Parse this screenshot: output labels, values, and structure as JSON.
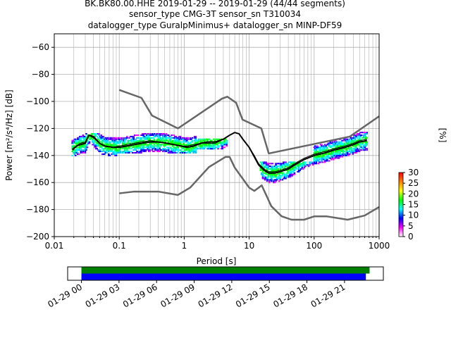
{
  "chart_data": [
    {
      "type": "heatmap",
      "title_lines": [
        "BK.BK80.00.HHE   2019-01-29 -- 2019-01-29  (44/44 segments)",
        "sensor_type CMG-3T sensor_sn T310034",
        "datalogger_type GuralpMinimus+ datalogger_sn MINP-DF59"
      ],
      "xlabel": "Period [s]",
      "ylabel": "Power [m²/s⁴/Hz] [dB]",
      "x_scale": "log",
      "xlim": [
        0.01,
        1000
      ],
      "ylim": [
        -200,
        -50
      ],
      "x_tick_labels": [
        "0.01",
        "0.1",
        "1",
        "10",
        "100",
        "1000"
      ],
      "x_ticks": [
        0.01,
        0.1,
        1,
        10,
        100,
        1000
      ],
      "y_ticks": [
        -200,
        -180,
        -160,
        -140,
        -120,
        -100,
        -80,
        -60
      ],
      "grid": true,
      "colorbar": {
        "label": "[%]",
        "min": 0,
        "max": 30,
        "ticks": [
          0,
          5,
          10,
          15,
          20,
          25,
          30
        ],
        "colors": [
          "#ffffff",
          "#ff00ff",
          "#0000ff",
          "#00ffff",
          "#00ff00",
          "#ffff00",
          "#ff8000",
          "#ff0000"
        ]
      },
      "mode_curve": {
        "period": [
          0.019,
          0.022,
          0.025,
          0.03,
          0.034,
          0.04,
          0.05,
          0.06,
          0.08,
          0.1,
          0.13,
          0.17,
          0.22,
          0.3,
          0.4,
          0.55,
          0.7,
          0.9,
          1.1,
          1.4,
          1.8,
          2.3,
          3,
          4,
          5,
          6,
          7,
          8,
          10,
          12,
          14,
          17,
          20,
          25,
          30,
          40,
          50,
          70,
          100,
          150,
          200,
          300,
          400,
          500,
          650
        ],
        "power": [
          -136,
          -133,
          -132,
          -131,
          -125,
          -126,
          -131,
          -133,
          -134,
          -134,
          -133,
          -132,
          -131,
          -130,
          -130,
          -131,
          -132,
          -133,
          -134,
          -133,
          -131,
          -130,
          -130,
          -128,
          -125,
          -123,
          -124,
          -128,
          -134,
          -141,
          -147,
          -151,
          -153,
          -153,
          -152,
          -150,
          -147,
          -143,
          -140,
          -138,
          -136,
          -134,
          -132,
          -130,
          -129
        ]
      },
      "mean_curve": {
        "period": [
          0.019,
          0.022,
          0.025,
          0.03,
          0.034,
          0.04,
          0.05,
          0.06,
          0.08,
          0.1,
          0.13,
          0.17,
          0.22,
          0.3,
          0.4,
          0.55,
          0.7,
          0.9,
          1.1,
          1.4,
          1.8,
          2.3,
          3,
          4,
          5,
          6,
          7,
          8,
          10,
          12,
          14,
          17,
          20,
          25,
          30,
          40,
          50,
          70,
          100,
          150,
          200,
          300,
          400,
          500,
          650
        ],
        "power": [
          -135,
          -133,
          -131,
          -130,
          -125,
          -127,
          -131,
          -133,
          -134,
          -133,
          -132,
          -131,
          -130,
          -129,
          -130,
          -131,
          -132,
          -133,
          -133,
          -132,
          -131,
          -131,
          -131,
          -128,
          -125,
          -123,
          -124,
          -128,
          -134,
          -140,
          -146,
          -150,
          -152,
          -152,
          -151,
          -149,
          -146,
          -142,
          -139,
          -137,
          -135,
          -133,
          -131,
          -129,
          -128
        ]
      },
      "high_noise_model": {
        "period": [
          0.1,
          0.22,
          0.32,
          0.8,
          3.8,
          4.6,
          6.3,
          7.9,
          15.4,
          20,
          354.8,
          1000
        ],
        "power": [
          -91.5,
          -97.4,
          -110.5,
          -120,
          -98,
          -96.5,
          -101,
          -113.5,
          -120,
          -138.5,
          -126,
          -111
        ]
      },
      "low_noise_model": {
        "period": [
          0.1,
          0.17,
          0.4,
          0.8,
          1.24,
          2.4,
          4.3,
          5,
          6,
          10,
          12,
          15.6,
          21.9,
          31.6,
          45,
          70,
          101,
          154,
          328,
          600,
          1000
        ],
        "power": [
          -168,
          -166.7,
          -166.7,
          -169.2,
          -163.7,
          -148.6,
          -141.1,
          -141.1,
          -149,
          -163.8,
          -166.2,
          -162.1,
          -177.5,
          -185,
          -187.5,
          -187.5,
          -185,
          -185,
          -187.5,
          -184.4,
          -178.1
        ]
      },
      "scatter_bands": [
        {
          "period_range": [
            0.019,
            0.09
          ],
          "power_range": [
            -140,
            -124
          ]
        },
        {
          "period_range": [
            0.09,
            1.5
          ],
          "power_range": [
            -138,
            -124
          ]
        },
        {
          "period_range": [
            1.5,
            4.5
          ],
          "power_range": [
            -135,
            -128
          ]
        },
        {
          "period_range": [
            15,
            100
          ],
          "power_range": [
            -160,
            -145
          ]
        },
        {
          "period_range": [
            100,
            650
          ],
          "power_range": [
            -146,
            -123
          ]
        }
      ]
    },
    {
      "type": "bar",
      "title": "",
      "x_tick_labels": [
        "01-29 00",
        "01-29 03",
        "01-29 06",
        "01-29 09",
        "01-29 12",
        "01-29 15",
        "01-29 18",
        "01-29 21"
      ],
      "x_ticks_hours": [
        0,
        3,
        6,
        9,
        12,
        15,
        18,
        21
      ],
      "xlim_hours": [
        -1.1,
        24.1
      ],
      "coverage": [
        {
          "color": "#008000",
          "start_hour": 0,
          "end_hour": 23.0
        },
        {
          "color": "#0000ff",
          "start_hour": 0,
          "end_hour": 22.7
        }
      ]
    }
  ]
}
